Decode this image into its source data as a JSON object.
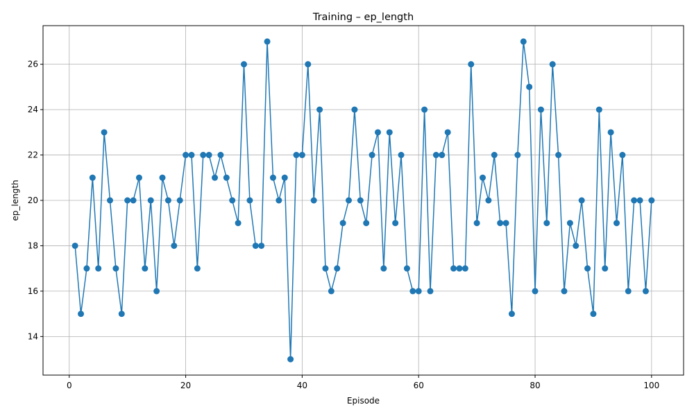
{
  "chart_data": {
    "type": "line",
    "title": "Training – ep_length",
    "xlabel": "Episode",
    "ylabel": "ep_length",
    "xlim": [
      -4.5,
      105.5
    ],
    "ylim": [
      12.3,
      27.7
    ],
    "xticks": [
      0,
      20,
      40,
      60,
      80,
      100
    ],
    "yticks": [
      14,
      16,
      18,
      20,
      22,
      24,
      26
    ],
    "grid": true,
    "color": "#1f77b4",
    "marker": "circle",
    "series": [
      {
        "x": [
          1,
          2,
          3,
          4,
          5,
          6,
          7,
          8,
          9,
          10,
          11,
          12,
          13,
          14,
          15,
          16,
          17,
          18,
          19,
          20,
          21,
          22,
          23,
          24,
          25,
          26,
          27,
          28,
          29,
          30,
          31,
          32,
          33,
          34,
          35,
          36,
          37,
          38,
          39,
          40,
          41,
          42,
          43,
          44,
          45,
          46,
          47,
          48,
          49,
          50,
          51,
          52,
          53,
          54,
          55,
          56,
          57,
          58,
          59,
          60,
          61,
          62,
          63,
          64,
          65,
          66,
          67,
          68,
          69,
          70,
          71,
          72,
          73,
          74,
          75,
          76,
          77,
          78,
          79,
          80,
          81,
          82,
          83,
          84,
          85,
          86,
          87,
          88,
          89,
          90,
          91,
          92,
          93,
          94,
          95,
          96,
          97,
          98,
          99,
          100
        ],
        "values": [
          18,
          15,
          17,
          21,
          17,
          23,
          20,
          17,
          15,
          20,
          20,
          21,
          17,
          20,
          16,
          21,
          20,
          18,
          20,
          22,
          22,
          17,
          22,
          22,
          21,
          22,
          21,
          20,
          19,
          26,
          20,
          18,
          18,
          27,
          21,
          20,
          21,
          13,
          22,
          22,
          26,
          20,
          24,
          17,
          16,
          17,
          19,
          20,
          24,
          20,
          19,
          22,
          23,
          17,
          23,
          19,
          22,
          17,
          16,
          16,
          24,
          16,
          22,
          22,
          23,
          17,
          17,
          17,
          26,
          19,
          21,
          20,
          22,
          19,
          19,
          15,
          22,
          27,
          25,
          16,
          24,
          19,
          26,
          22,
          16,
          19,
          18,
          20,
          17,
          15,
          24,
          17,
          23,
          19,
          22,
          16,
          20,
          20,
          16,
          20
        ]
      }
    ]
  }
}
